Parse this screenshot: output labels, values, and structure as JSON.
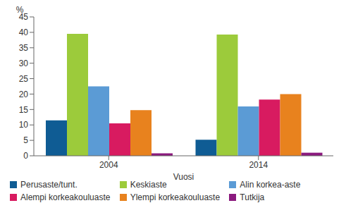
{
  "chart_data": {
    "type": "bar",
    "y_label": "%",
    "x_label": "Vuosi",
    "categories": [
      "2004",
      "2014"
    ],
    "series": [
      {
        "name": "Perusaste/tunt.",
        "color": "#0f5c94",
        "values": [
          11.5,
          5.2
        ]
      },
      {
        "name": "Keskiaste",
        "color": "#9ccb3b",
        "values": [
          39.5,
          39.3
        ]
      },
      {
        "name": "Alin korkea-aste",
        "color": "#5b9bd5",
        "values": [
          22.5,
          16
        ]
      },
      {
        "name": "Alempi korkeakouluaste",
        "color": "#d81b60",
        "values": [
          10.5,
          18.2
        ]
      },
      {
        "name": "Ylempi korkeakouluaste",
        "color": "#e8821e",
        "values": [
          14.8,
          20
        ]
      },
      {
        "name": "Tutkija",
        "color": "#8b1a7e",
        "values": [
          0.8,
          1
        ]
      }
    ],
    "ylim": [
      0,
      45
    ],
    "yticks": [
      0,
      5,
      10,
      15,
      20,
      25,
      30,
      35,
      40,
      45
    ],
    "grid": false,
    "legend": "bottom"
  }
}
